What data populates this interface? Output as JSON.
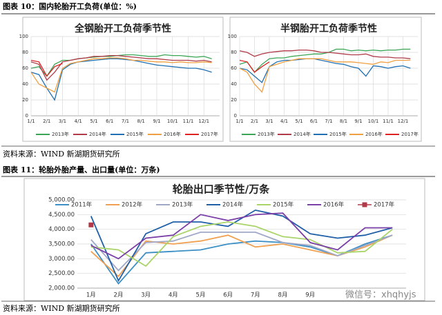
{
  "caption_10": "图表 10：国内轮胎开工负荷(单位：%)",
  "source_1": "资料来源：WIND      新湖期货研究所",
  "caption_11": "图表 11：轮胎外胎产量、出口量(单位：万条)",
  "source_2": "资料来源：WIND      新湖期货研究所",
  "watermark": "微信号：xhqhyjs",
  "chart_data": [
    {
      "type": "line",
      "title": "全钢胎开工负荷季节性",
      "categories": [
        "1/1",
        null,
        "2/1",
        null,
        "3/1",
        null,
        "4/1",
        null,
        "5/1",
        null,
        "6/1",
        null,
        "7/1",
        null,
        "8/1",
        null,
        "9/1",
        null,
        "10/1",
        null,
        "11/1",
        null,
        "12/1",
        null
      ],
      "ylim": [
        0,
        100
      ],
      "yticks": [
        0,
        20,
        40,
        60,
        80,
        100
      ],
      "grid": true,
      "series": [
        {
          "name": "2013年",
          "color": "#3aa655",
          "values": [
            60,
            62,
            50,
            65,
            70,
            70,
            72,
            73,
            74,
            75,
            75,
            76,
            77,
            77,
            76,
            75,
            75,
            77,
            76,
            76,
            75,
            74,
            75,
            72
          ]
        },
        {
          "name": "2014年",
          "color": "#b03a48",
          "values": [
            68,
            65,
            45,
            55,
            68,
            70,
            72,
            73,
            75,
            75,
            76,
            76,
            75,
            74,
            73,
            72,
            72,
            71,
            70,
            70,
            70,
            69,
            70,
            68
          ]
        },
        {
          "name": "2015年",
          "color": "#1f6fb2",
          "values": [
            55,
            52,
            35,
            20,
            58,
            65,
            68,
            69,
            70,
            71,
            72,
            72,
            71,
            70,
            68,
            66,
            64,
            63,
            62,
            61,
            60,
            60,
            58,
            55
          ]
        },
        {
          "name": "2016年",
          "color": "#f0a040",
          "values": [
            55,
            40,
            35,
            30,
            60,
            66,
            68,
            70,
            72,
            72,
            73,
            73,
            72,
            70,
            70,
            69,
            68,
            68,
            67,
            68,
            67,
            67,
            68,
            67
          ]
        },
        {
          "name": "2017年",
          "color": "#e02020",
          "values": [
            70,
            68,
            50,
            62,
            66,
            null,
            null,
            null,
            null,
            null,
            null,
            null,
            null,
            null,
            null,
            null,
            null,
            null,
            null,
            null,
            null,
            null,
            null,
            null
          ]
        }
      ]
    },
    {
      "type": "line",
      "title": "半钢胎开工负荷季节性",
      "categories": [
        "1/1",
        null,
        "2/1",
        null,
        "3/1",
        null,
        "4/1",
        null,
        "5/1",
        null,
        "6/1",
        null,
        "7/1",
        null,
        "8/1",
        null,
        "9/1",
        null,
        "10/1",
        null,
        "11/1",
        null,
        "12/1",
        null
      ],
      "ylim": [
        0,
        100
      ],
      "yticks": [
        0,
        20,
        40,
        60,
        80,
        100
      ],
      "grid": true,
      "series": [
        {
          "name": "2013年",
          "color": "#3aa655",
          "values": [
            65,
            68,
            55,
            65,
            72,
            73,
            73,
            75,
            76,
            77,
            78,
            78,
            80,
            84,
            84,
            82,
            83,
            82,
            83,
            82,
            83,
            83,
            84,
            84
          ]
        },
        {
          "name": "2014年",
          "color": "#b03a48",
          "values": [
            82,
            80,
            75,
            78,
            80,
            81,
            82,
            82,
            83,
            83,
            82,
            80,
            80,
            79,
            78,
            77,
            77,
            78,
            75,
            74,
            74,
            73,
            73,
            72
          ]
        },
        {
          "name": "2015年",
          "color": "#1f6fb2",
          "values": [
            60,
            58,
            50,
            42,
            62,
            68,
            70,
            70,
            71,
            72,
            72,
            70,
            68,
            66,
            65,
            62,
            60,
            50,
            63,
            62,
            60,
            62,
            63,
            60
          ]
        },
        {
          "name": "2016年",
          "color": "#f0a040",
          "values": [
            60,
            55,
            40,
            30,
            62,
            65,
            68,
            70,
            72,
            72,
            72,
            72,
            70,
            68,
            68,
            68,
            67,
            66,
            65,
            68,
            67,
            70,
            70,
            70
          ]
        },
        {
          "name": "2017年",
          "color": "#e02020",
          "values": [
            70,
            68,
            55,
            62,
            68,
            null,
            null,
            null,
            null,
            null,
            null,
            null,
            null,
            null,
            null,
            null,
            null,
            null,
            null,
            null,
            null,
            null,
            null,
            null
          ]
        }
      ]
    },
    {
      "type": "line",
      "title": "轮胎出口季节性/万条",
      "categories": [
        "1月",
        "2月",
        "3月",
        "4月",
        "5月",
        "6月",
        "7月",
        "8月",
        "9月",
        null,
        null,
        null
      ],
      "ylim": [
        2000,
        5000
      ],
      "yticks": [
        {
          "value": 2000,
          "label": "2,000.00"
        },
        {
          "value": 2500,
          "label": "2,500.00"
        },
        {
          "value": 3000,
          "label": "3,000.00"
        },
        {
          "value": 3500,
          "label": "3,500.00"
        },
        {
          "value": 4000,
          "label": "4,000.00"
        },
        {
          "value": 4500,
          "label": "4,500.00"
        },
        {
          "value": 5000,
          "label": "5,000.00"
        }
      ],
      "grid": true,
      "series": [
        {
          "name": "2011年",
          "color": "#3b8fc4",
          "values": [
            3500,
            2150,
            3200,
            3250,
            3300,
            3500,
            3600,
            3550,
            3400,
            3100,
            3500,
            3800
          ]
        },
        {
          "name": "2012年",
          "color": "#f0a050",
          "values": [
            3250,
            2400,
            3600,
            3500,
            3600,
            3800,
            3400,
            3500,
            3300,
            3100,
            3400,
            3800
          ]
        },
        {
          "name": "2013年",
          "color": "#a0a8c8",
          "values": [
            3650,
            2600,
            3550,
            3600,
            3900,
            3900,
            3900,
            3550,
            3450,
            3100,
            3450,
            3800
          ]
        },
        {
          "name": "2014年",
          "color": "#1f5fa8",
          "values": [
            4450,
            2250,
            3850,
            4250,
            4250,
            4100,
            4650,
            4450,
            3850,
            3700,
            3800,
            4050
          ]
        },
        {
          "name": "2015年",
          "color": "#a8d468",
          "values": [
            3400,
            3300,
            2750,
            3750,
            4100,
            4250,
            4100,
            3750,
            3650,
            3200,
            3250,
            4000
          ]
        },
        {
          "name": "2016年",
          "color": "#7b3fa8",
          "values": [
            3450,
            3000,
            3700,
            3800,
            4500,
            4300,
            4500,
            4550,
            3550,
            3300,
            4050,
            4050
          ]
        },
        {
          "name": "2017年",
          "color": "#b03a48",
          "marker": "square",
          "values": [
            4150,
            null,
            null,
            null,
            null,
            null,
            null,
            null,
            null,
            null,
            null,
            null
          ]
        }
      ]
    }
  ]
}
